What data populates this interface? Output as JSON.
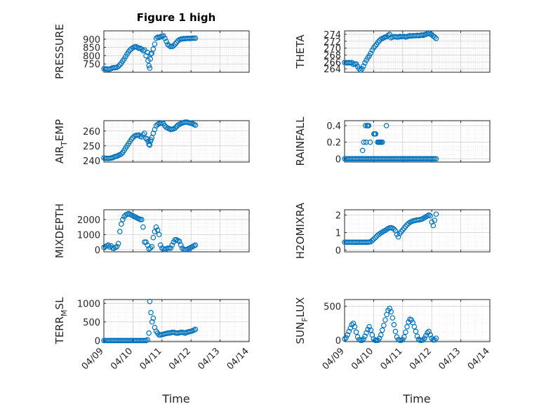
{
  "figure": {
    "title": "Figure 1 high",
    "xlabel": "Time"
  },
  "style": {
    "marker_color": "#0072BD",
    "axis_color": "#262626",
    "grid_color": "#dcdcdc",
    "background": "#ffffff"
  },
  "x_ticks": [
    "04/09",
    "04/10",
    "04/11",
    "04/12",
    "04/13",
    "04/14"
  ],
  "chart_data": [
    {
      "type": "scatter",
      "ylabel": "PRESSURE",
      "title": "Figure 1 high",
      "ylim": [
        700,
        950
      ],
      "yticks": [
        "750",
        "800",
        "850",
        "900"
      ],
      "ytick_values": [
        750,
        800,
        850,
        900
      ],
      "show_xticks": false,
      "x": [
        0.0,
        0.05,
        0.1,
        0.15,
        0.2,
        0.25,
        0.3,
        0.35,
        0.4,
        0.45,
        0.5,
        0.55,
        0.6,
        0.65,
        0.7,
        0.75,
        0.8,
        0.85,
        0.9,
        0.95,
        1.0,
        1.05,
        1.1,
        1.15,
        1.2,
        1.25,
        1.3,
        1.35,
        1.4,
        1.45,
        1.5,
        1.52,
        1.55,
        1.58,
        1.6,
        1.62,
        1.65,
        1.7,
        1.75,
        1.8,
        1.85,
        1.9,
        1.95,
        2.0,
        2.05,
        2.1,
        2.15,
        2.2,
        2.25,
        2.3,
        2.35,
        2.4,
        2.45,
        2.5,
        2.55,
        2.6,
        2.65,
        2.7,
        2.75,
        2.8,
        2.85,
        2.9,
        2.95,
        3.0,
        3.05,
        3.1,
        3.15
      ],
      "y": [
        721,
        720,
        720,
        718,
        719,
        722,
        726,
        728,
        728,
        730,
        736,
        745,
        755,
        768,
        780,
        795,
        810,
        823,
        835,
        842,
        848,
        853,
        855,
        850,
        845,
        845,
        840,
        830,
        835,
        800,
        820,
        770,
        740,
        725,
        780,
        810,
        815,
        840,
        870,
        905,
        912,
        910,
        915,
        918,
        920,
        905,
        885,
        868,
        860,
        855,
        856,
        860,
        870,
        880,
        890,
        897,
        900,
        902,
        903,
        903,
        904,
        905,
        904,
        905,
        906,
        906,
        906
      ]
    },
    {
      "type": "scatter",
      "ylabel": "THETA",
      "ylim": [
        263,
        275
      ],
      "yticks": [
        "264",
        "266",
        "268",
        "270",
        "272",
        "274"
      ],
      "ytick_values": [
        264,
        266,
        268,
        270,
        272,
        274
      ],
      "show_xticks": false,
      "x": [
        0.0,
        0.05,
        0.1,
        0.15,
        0.2,
        0.25,
        0.3,
        0.35,
        0.4,
        0.45,
        0.5,
        0.55,
        0.6,
        0.65,
        0.7,
        0.75,
        0.8,
        0.85,
        0.9,
        0.95,
        1.0,
        1.05,
        1.1,
        1.15,
        1.2,
        1.25,
        1.3,
        1.35,
        1.4,
        1.45,
        1.5,
        1.55,
        1.6,
        1.65,
        1.7,
        1.75,
        1.8,
        1.85,
        1.9,
        1.95,
        2.0,
        2.05,
        2.1,
        2.15,
        2.2,
        2.25,
        2.3,
        2.35,
        2.4,
        2.45,
        2.5,
        2.55,
        2.6,
        2.65,
        2.7,
        2.75,
        2.8,
        2.85,
        2.9,
        2.95,
        3.0,
        3.05,
        3.1,
        3.15
      ],
      "y": [
        265.8,
        265.8,
        265.7,
        265.8,
        265.7,
        265.8,
        265.3,
        265.4,
        265.4,
        264.7,
        264.0,
        263.6,
        264.0,
        264.8,
        265.7,
        266.5,
        267.2,
        267.8,
        268.5,
        269.4,
        270.1,
        270.6,
        271.1,
        271.7,
        272.2,
        272.6,
        272.8,
        273.0,
        273.2,
        273.3,
        273.7,
        274.0,
        273.0,
        273.2,
        273.3,
        273.3,
        273.2,
        273.2,
        273.4,
        273.3,
        273.4,
        273.4,
        273.2,
        273.3,
        273.5,
        273.6,
        273.5,
        273.6,
        273.6,
        273.6,
        273.7,
        273.6,
        273.7,
        273.8,
        273.7,
        273.9,
        274.0,
        274.2,
        274.4,
        274.1,
        273.9,
        273.5,
        273.2,
        272.8
      ]
    },
    {
      "type": "scatter",
      "ylabel": "AIR_TEMP",
      "ylabel_main": "AIR",
      "ylabel_sub": "T",
      "ylabel_rest": "EMP",
      "ylim": [
        239,
        267
      ],
      "yticks": [
        "240",
        "250",
        "260"
      ],
      "ytick_values": [
        240,
        250,
        260
      ],
      "show_xticks": false,
      "x": [
        0.0,
        0.05,
        0.1,
        0.15,
        0.2,
        0.25,
        0.3,
        0.35,
        0.4,
        0.45,
        0.5,
        0.55,
        0.6,
        0.65,
        0.7,
        0.75,
        0.8,
        0.85,
        0.9,
        0.95,
        1.0,
        1.05,
        1.1,
        1.15,
        1.2,
        1.25,
        1.3,
        1.35,
        1.4,
        1.45,
        1.5,
        1.52,
        1.55,
        1.58,
        1.6,
        1.62,
        1.65,
        1.7,
        1.75,
        1.8,
        1.85,
        1.9,
        1.95,
        2.0,
        2.05,
        2.1,
        2.15,
        2.2,
        2.25,
        2.3,
        2.35,
        2.4,
        2.45,
        2.5,
        2.55,
        2.6,
        2.65,
        2.7,
        2.75,
        2.8,
        2.85,
        2.9,
        2.95,
        3.0,
        3.05,
        3.1,
        3.15
      ],
      "y": [
        241.8,
        241.6,
        241.5,
        241.4,
        241.6,
        241.7,
        242.0,
        242.4,
        242.8,
        243.0,
        243.5,
        244.0,
        244.5,
        245.5,
        247.0,
        248.5,
        250.0,
        251.5,
        253.0,
        254.5,
        255.5,
        256.5,
        257.0,
        257.2,
        257.3,
        256.5,
        256.0,
        257.5,
        258.5,
        255.0,
        254.5,
        253.0,
        251.0,
        250.5,
        253.0,
        254.0,
        255.5,
        258.5,
        261.0,
        263.5,
        264.5,
        265.0,
        265.2,
        265.5,
        265.0,
        263.5,
        262.5,
        262.0,
        261.5,
        261.0,
        261.2,
        261.5,
        262.0,
        263.0,
        264.0,
        264.5,
        265.0,
        265.5,
        265.8,
        266.0,
        266.0,
        265.8,
        265.5,
        265.3,
        265.0,
        264.5,
        264.0
      ]
    },
    {
      "type": "scatter",
      "ylabel": "RAINFALL",
      "ylim": [
        -0.04,
        0.46
      ],
      "yticks": [
        "0",
        "0.2",
        "0.4"
      ],
      "ytick_values": [
        0,
        0.2,
        0.4
      ],
      "show_xticks": false,
      "x": [
        0.0,
        0.05,
        0.1,
        0.15,
        0.2,
        0.25,
        0.3,
        0.35,
        0.4,
        0.45,
        0.5,
        0.55,
        0.6,
        0.65,
        0.7,
        0.75,
        0.8,
        0.85,
        0.9,
        0.95,
        1.0,
        1.05,
        1.1,
        1.15,
        1.2,
        1.25,
        1.3,
        1.35,
        1.4,
        1.45,
        1.5,
        1.55,
        1.6,
        1.65,
        1.7,
        1.75,
        1.8,
        1.85,
        1.9,
        1.95,
        2.0,
        2.05,
        2.1,
        2.15,
        2.2,
        2.25,
        2.3,
        2.35,
        2.4,
        2.45,
        2.5,
        2.55,
        2.6,
        2.65,
        2.7,
        2.75,
        2.8,
        2.85,
        2.9,
        2.95,
        3.0,
        3.05,
        3.1,
        3.15,
        0.62,
        0.66,
        0.72,
        0.74,
        0.78,
        0.8,
        0.83,
        0.88,
        1.01,
        1.04,
        1.07,
        1.14,
        1.17,
        1.2,
        1.23,
        1.26,
        1.3,
        1.44
      ],
      "y": [
        0,
        0,
        0,
        0,
        0,
        0,
        0,
        0,
        0,
        0,
        0,
        0,
        0,
        0,
        0,
        0,
        0,
        0,
        0,
        0,
        0,
        0,
        0,
        0,
        0,
        0,
        0,
        0,
        0,
        0,
        0,
        0,
        0,
        0,
        0,
        0,
        0,
        0,
        0,
        0,
        0,
        0,
        0,
        0,
        0,
        0,
        0,
        0,
        0,
        0,
        0,
        0,
        0,
        0,
        0,
        0,
        0,
        0,
        0,
        0,
        0,
        0,
        0,
        0,
        0.1,
        0.2,
        0.4,
        0.2,
        0.4,
        0.4,
        0.4,
        0.2,
        0.3,
        0.3,
        0.3,
        0.2,
        0.2,
        0.2,
        0.2,
        0.2,
        0.2,
        0.4
      ]
    },
    {
      "type": "scatter",
      "ylabel": "MIXDEPTH",
      "ylim": [
        -150,
        2650
      ],
      "yticks": [
        "0",
        "1000",
        "2000"
      ],
      "ytick_values": [
        0,
        1000,
        2000
      ],
      "show_xticks": false,
      "x": [
        0.0,
        0.05,
        0.1,
        0.15,
        0.2,
        0.25,
        0.3,
        0.35,
        0.4,
        0.45,
        0.5,
        0.55,
        0.6,
        0.65,
        0.7,
        0.75,
        0.8,
        0.85,
        0.9,
        0.95,
        1.0,
        1.05,
        1.1,
        1.15,
        1.2,
        1.25,
        1.3,
        1.35,
        1.4,
        1.45,
        1.5,
        1.55,
        1.6,
        1.65,
        1.7,
        1.75,
        1.8,
        1.85,
        1.9,
        1.95,
        2.0,
        2.05,
        2.1,
        2.15,
        2.2,
        2.25,
        2.3,
        2.35,
        2.4,
        2.45,
        2.5,
        2.55,
        2.6,
        2.65,
        2.7,
        2.75,
        2.8,
        2.85,
        2.9,
        2.95,
        3.0,
        3.05,
        3.1,
        3.15
      ],
      "y": [
        150,
        200,
        250,
        300,
        180,
        250,
        100,
        80,
        150,
        200,
        400,
        1200,
        1700,
        2000,
        2200,
        2300,
        2350,
        2400,
        2350,
        2300,
        2250,
        2200,
        2150,
        2100,
        2050,
        2000,
        2000,
        1500,
        500,
        500,
        300,
        50,
        100,
        200,
        800,
        1200,
        1500,
        1300,
        1000,
        300,
        100,
        50,
        0,
        50,
        100,
        100,
        100,
        300,
        500,
        650,
        650,
        600,
        550,
        300,
        100,
        0,
        0,
        0,
        50,
        100,
        150,
        200,
        250,
        300
      ]
    },
    {
      "type": "scatter",
      "ylabel": "H2OMIXRA",
      "ylim": [
        -0.1,
        2.3
      ],
      "yticks": [
        "0",
        "1",
        "2"
      ],
      "ytick_values": [
        0,
        1,
        2
      ],
      "show_xticks": false,
      "x": [
        0.0,
        0.05,
        0.1,
        0.15,
        0.2,
        0.25,
        0.3,
        0.35,
        0.4,
        0.45,
        0.5,
        0.55,
        0.6,
        0.65,
        0.7,
        0.75,
        0.8,
        0.85,
        0.9,
        0.95,
        1.0,
        1.05,
        1.1,
        1.15,
        1.2,
        1.25,
        1.3,
        1.35,
        1.4,
        1.45,
        1.5,
        1.55,
        1.6,
        1.65,
        1.7,
        1.75,
        1.8,
        1.85,
        1.9,
        1.95,
        2.0,
        2.05,
        2.1,
        2.15,
        2.2,
        2.25,
        2.3,
        2.35,
        2.4,
        2.45,
        2.5,
        2.55,
        2.6,
        2.65,
        2.7,
        2.75,
        2.8,
        2.85,
        2.9,
        2.95,
        3.0,
        3.05,
        3.1,
        3.15
      ],
      "y": [
        0.45,
        0.45,
        0.45,
        0.45,
        0.45,
        0.45,
        0.45,
        0.45,
        0.45,
        0.45,
        0.45,
        0.45,
        0.45,
        0.45,
        0.45,
        0.45,
        0.45,
        0.46,
        0.48,
        0.55,
        0.62,
        0.7,
        0.78,
        0.86,
        0.92,
        0.98,
        1.03,
        1.08,
        1.12,
        1.18,
        1.23,
        1.27,
        1.28,
        1.25,
        1.2,
        1.1,
        0.9,
        0.75,
        0.95,
        1.05,
        1.15,
        1.25,
        1.35,
        1.45,
        1.52,
        1.58,
        1.62,
        1.66,
        1.68,
        1.7,
        1.72,
        1.72,
        1.74,
        1.76,
        1.8,
        1.85,
        1.9,
        1.95,
        2.0,
        1.95,
        1.6,
        1.4,
        1.7,
        2.05
      ]
    },
    {
      "type": "scatter",
      "ylabel": "TERR_MSL",
      "ylabel_main": "TERR",
      "ylabel_sub": "M",
      "ylabel_rest": "SL",
      "ylim": [
        -30,
        1100
      ],
      "yticks": [
        "0",
        "500",
        "1000"
      ],
      "ytick_values": [
        0,
        500,
        1000
      ],
      "show_xticks": true,
      "x": [
        0.0,
        0.05,
        0.1,
        0.15,
        0.2,
        0.25,
        0.3,
        0.35,
        0.4,
        0.45,
        0.5,
        0.55,
        0.6,
        0.65,
        0.7,
        0.75,
        0.8,
        0.85,
        0.9,
        0.95,
        1.0,
        1.05,
        1.1,
        1.15,
        1.2,
        1.25,
        1.3,
        1.35,
        1.4,
        1.45,
        1.5,
        1.55,
        1.58,
        1.62,
        1.66,
        1.7,
        1.75,
        1.8,
        1.85,
        1.9,
        1.95,
        2.0,
        2.05,
        2.1,
        2.15,
        2.2,
        2.25,
        2.3,
        2.35,
        2.4,
        2.45,
        2.5,
        2.55,
        2.6,
        2.65,
        2.7,
        2.75,
        2.8,
        2.85,
        2.9,
        2.95,
        3.0,
        3.05,
        3.1,
        3.15
      ],
      "y": [
        0,
        0,
        0,
        0,
        0,
        0,
        0,
        0,
        0,
        0,
        0,
        0,
        0,
        0,
        0,
        0,
        0,
        0,
        0,
        0,
        0,
        0,
        0,
        0,
        0,
        0,
        0,
        0,
        0,
        0,
        20,
        200,
        1050,
        750,
        500,
        600,
        350,
        250,
        200,
        150,
        150,
        160,
        170,
        180,
        190,
        200,
        200,
        210,
        220,
        220,
        210,
        200,
        200,
        210,
        220,
        220,
        210,
        200,
        220,
        230,
        240,
        250,
        260,
        280,
        300
      ]
    },
    {
      "type": "scatter",
      "ylabel": "SUN_FLUX",
      "ylabel_main": "SUN",
      "ylabel_sub": "F",
      "ylabel_rest": "LUX",
      "ylim": [
        -20,
        600
      ],
      "yticks": [
        "0",
        "500"
      ],
      "ytick_values": [
        0,
        500
      ],
      "show_xticks": true,
      "x": [
        0.0,
        0.05,
        0.1,
        0.15,
        0.2,
        0.25,
        0.3,
        0.35,
        0.4,
        0.45,
        0.5,
        0.55,
        0.6,
        0.65,
        0.7,
        0.75,
        0.8,
        0.85,
        0.9,
        0.95,
        1.0,
        1.05,
        1.1,
        1.15,
        1.2,
        1.25,
        1.3,
        1.35,
        1.4,
        1.45,
        1.5,
        1.55,
        1.6,
        1.65,
        1.7,
        1.75,
        1.8,
        1.85,
        1.9,
        1.95,
        2.0,
        2.05,
        2.1,
        2.15,
        2.2,
        2.25,
        2.3,
        2.35,
        2.4,
        2.45,
        2.5,
        2.55,
        2.6,
        2.65,
        2.7,
        2.75,
        2.8,
        2.85,
        2.9,
        2.95,
        3.0,
        3.05,
        3.1,
        3.15
      ],
      "y": [
        20,
        40,
        80,
        130,
        180,
        230,
        250,
        200,
        120,
        50,
        10,
        0,
        0,
        20,
        60,
        110,
        160,
        200,
        150,
        80,
        20,
        0,
        0,
        0,
        30,
        80,
        150,
        220,
        300,
        380,
        440,
        470,
        420,
        330,
        230,
        130,
        50,
        10,
        0,
        0,
        10,
        50,
        120,
        200,
        270,
        310,
        300,
        260,
        200,
        130,
        60,
        15,
        0,
        0,
        5,
        30,
        70,
        110,
        130,
        80,
        30,
        5,
        5,
        30
      ]
    }
  ]
}
